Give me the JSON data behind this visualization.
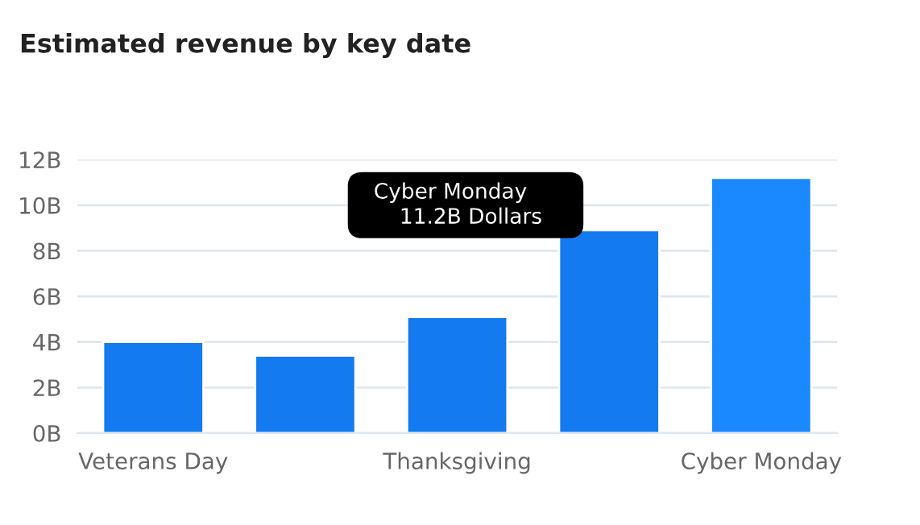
{
  "chart_data": {
    "type": "bar",
    "title": "Estimated revenue by key date",
    "categories": [
      "Veterans Day",
      null,
      "Thanksgiving",
      null,
      "Cyber Monday"
    ],
    "values": [
      4.0,
      3.4,
      5.1,
      8.9,
      11.2
    ],
    "colors": [
      "#147aef",
      "#147aef",
      "#147aef",
      "#147aef",
      "#1a88ff"
    ],
    "ylim": [
      0,
      12
    ],
    "yticks": [
      {
        "value": 0,
        "label": "0B"
      },
      {
        "value": 2,
        "label": "2B"
      },
      {
        "value": 4,
        "label": "4B"
      },
      {
        "value": 6,
        "label": "6B"
      },
      {
        "value": 8,
        "label": "8B"
      },
      {
        "value": 10,
        "label": "10B"
      },
      {
        "value": 12,
        "label": "12B"
      }
    ],
    "grid": "y",
    "legend": false,
    "annotations": [
      "Cyber Monday\n11.2B Dollars"
    ]
  }
}
